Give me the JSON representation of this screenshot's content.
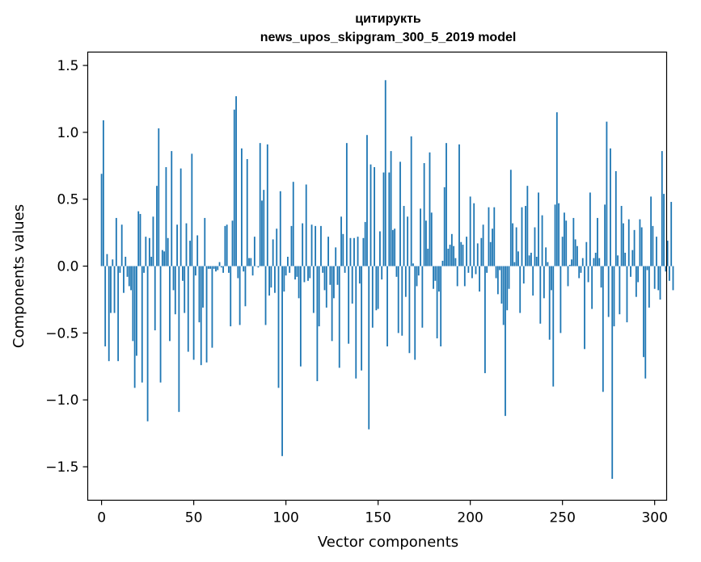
{
  "chart_data": {
    "type": "bar",
    "title_line1": "цитирукть",
    "title_line2": "news_upos_skipgram_300_5_2019 model",
    "xlabel": "Vector components",
    "ylabel": "Components values",
    "xlim": [
      -7.5,
      306.5
    ],
    "ylim": [
      -1.75,
      1.6
    ],
    "xticks": [
      0,
      50,
      100,
      150,
      200,
      250,
      300
    ],
    "yticks": [
      -1.5,
      -1.0,
      -0.5,
      0.0,
      0.5,
      1.0,
      1.5
    ],
    "ytick_labels": [
      "−1.5",
      "−1.0",
      "−0.5",
      "0.0",
      "0.5",
      "1.0",
      "1.5"
    ],
    "bar_color": "#1f77b4",
    "values": [
      0.69,
      1.09,
      -0.6,
      0.09,
      -0.71,
      -0.35,
      0.05,
      -0.35,
      0.36,
      -0.71,
      -0.05,
      0.31,
      -0.2,
      0.07,
      -0.08,
      -0.15,
      -0.18,
      -0.56,
      -0.91,
      -0.67,
      0.41,
      0.39,
      -0.87,
      -0.05,
      0.22,
      -1.16,
      0.21,
      0.07,
      0.37,
      -0.48,
      0.6,
      1.03,
      -0.87,
      0.12,
      0.11,
      0.74,
      0.21,
      -0.56,
      0.86,
      -0.18,
      -0.36,
      0.31,
      -1.09,
      0.73,
      -0.11,
      -0.35,
      0.32,
      -0.64,
      0.19,
      0.84,
      -0.7,
      -0.07,
      0.23,
      -0.42,
      -0.74,
      -0.31,
      0.36,
      -0.72,
      -0.02,
      -0.02,
      -0.61,
      -0.02,
      -0.04,
      -0.03,
      0.03,
      -0.01,
      -0.05,
      0.3,
      0.31,
      -0.05,
      -0.45,
      0.34,
      1.17,
      1.27,
      -0.09,
      -0.44,
      0.88,
      -0.04,
      -0.3,
      0.8,
      0.06,
      0.06,
      -0.07,
      0.22,
      0.0,
      -0.01,
      0.92,
      0.49,
      0.57,
      -0.44,
      0.91,
      -0.22,
      -0.16,
      0.2,
      -0.2,
      0.28,
      -0.91,
      0.56,
      -1.42,
      -0.19,
      -0.07,
      0.07,
      -0.05,
      0.3,
      0.63,
      -0.1,
      -0.08,
      -0.24,
      -0.75,
      0.32,
      -0.12,
      0.61,
      -0.11,
      -0.09,
      0.31,
      -0.35,
      0.3,
      -0.86,
      -0.45,
      0.3,
      -0.05,
      -0.18,
      -0.31,
      0.22,
      -0.14,
      -0.56,
      -0.24,
      0.14,
      -0.14,
      -0.76,
      0.37,
      0.24,
      -0.05,
      0.92,
      -0.58,
      0.21,
      -0.28,
      0.21,
      -0.84,
      0.22,
      -0.13,
      -0.78,
      0.21,
      0.33,
      0.98,
      -1.22,
      0.76,
      -0.46,
      0.74,
      -0.33,
      -0.32,
      0.26,
      -0.1,
      0.7,
      1.39,
      -0.6,
      0.7,
      0.86,
      0.27,
      0.28,
      -0.08,
      -0.5,
      0.78,
      -0.52,
      0.45,
      -0.23,
      0.37,
      -0.65,
      0.97,
      0.02,
      -0.7,
      -0.15,
      -0.07,
      0.43,
      -0.46,
      0.77,
      0.34,
      0.13,
      0.85,
      0.4,
      -0.17,
      -0.11,
      -0.54,
      -0.19,
      -0.6,
      0.04,
      0.59,
      0.92,
      0.13,
      0.16,
      0.24,
      0.15,
      0.06,
      -0.15,
      0.91,
      0.18,
      0.16,
      -0.15,
      0.22,
      -0.05,
      0.52,
      -0.09,
      0.47,
      -0.06,
      0.17,
      -0.19,
      0.21,
      0.31,
      -0.8,
      -0.05,
      0.44,
      0.18,
      0.28,
      0.44,
      -0.09,
      -0.21,
      -0.03,
      -0.28,
      -0.44,
      -1.12,
      -0.33,
      -0.17,
      0.72,
      0.32,
      0.03,
      0.29,
      0.11,
      -0.35,
      0.44,
      -0.13,
      0.45,
      0.6,
      0.08,
      0.1,
      -0.22,
      0.29,
      0.07,
      0.55,
      -0.43,
      0.38,
      -0.24,
      0.14,
      0.03,
      -0.55,
      -0.18,
      -0.9,
      0.46,
      1.15,
      0.47,
      -0.5,
      0.22,
      0.4,
      0.34,
      -0.15,
      0.01,
      0.05,
      0.36,
      0.2,
      0.15,
      -0.09,
      -0.05,
      0.06,
      -0.62,
      0.18,
      -0.12,
      0.55,
      -0.32,
      0.06,
      0.1,
      0.36,
      0.06,
      -0.16,
      -0.94,
      0.46,
      1.08,
      -0.38,
      0.88,
      -1.59,
      -0.45,
      0.71,
      0.08,
      -0.36,
      0.45,
      0.32,
      0.1,
      -0.42,
      0.35,
      -0.08,
      0.12,
      0.27,
      -0.23,
      -0.12,
      0.35,
      0.29,
      -0.68,
      -0.84,
      -0.03,
      -0.31,
      0.52,
      0.3,
      -0.17,
      0.22,
      -0.18,
      -0.25,
      0.86,
      0.54,
      -0.04,
      0.19,
      -0.11,
      0.48,
      -0.18
    ]
  }
}
